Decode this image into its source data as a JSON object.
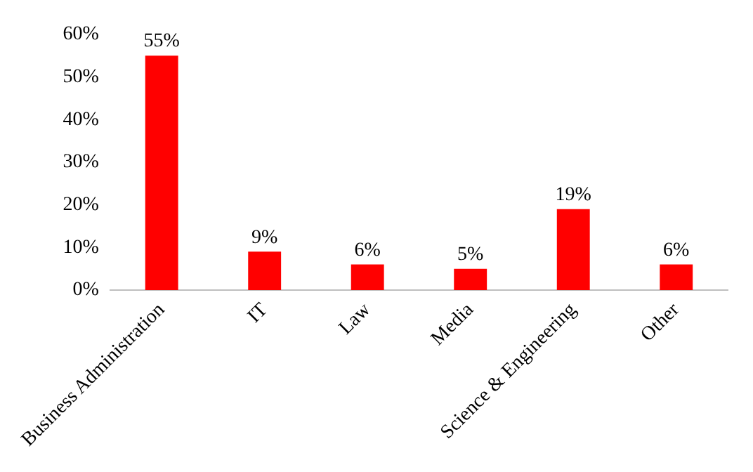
{
  "chart_data": {
    "type": "bar",
    "categories": [
      "Business Administration",
      "IT",
      "Law",
      "Media",
      "Science & Engineering",
      "Other"
    ],
    "values": [
      55,
      9,
      6,
      5,
      19,
      6
    ],
    "color": "#ff0000",
    "value_labels": [
      "55%",
      "9%",
      "6%",
      "5%",
      "19%",
      "6%"
    ],
    "ylim": [
      0,
      60
    ],
    "yticks": [
      {
        "value": 0,
        "label": "0%"
      },
      {
        "value": 10,
        "label": "10%"
      },
      {
        "value": 20,
        "label": "20%"
      },
      {
        "value": 30,
        "label": "30%"
      },
      {
        "value": 40,
        "label": "40%"
      },
      {
        "value": 50,
        "label": "50%"
      },
      {
        "value": 60,
        "label": "60%"
      }
    ],
    "grid": false,
    "legend": false
  }
}
